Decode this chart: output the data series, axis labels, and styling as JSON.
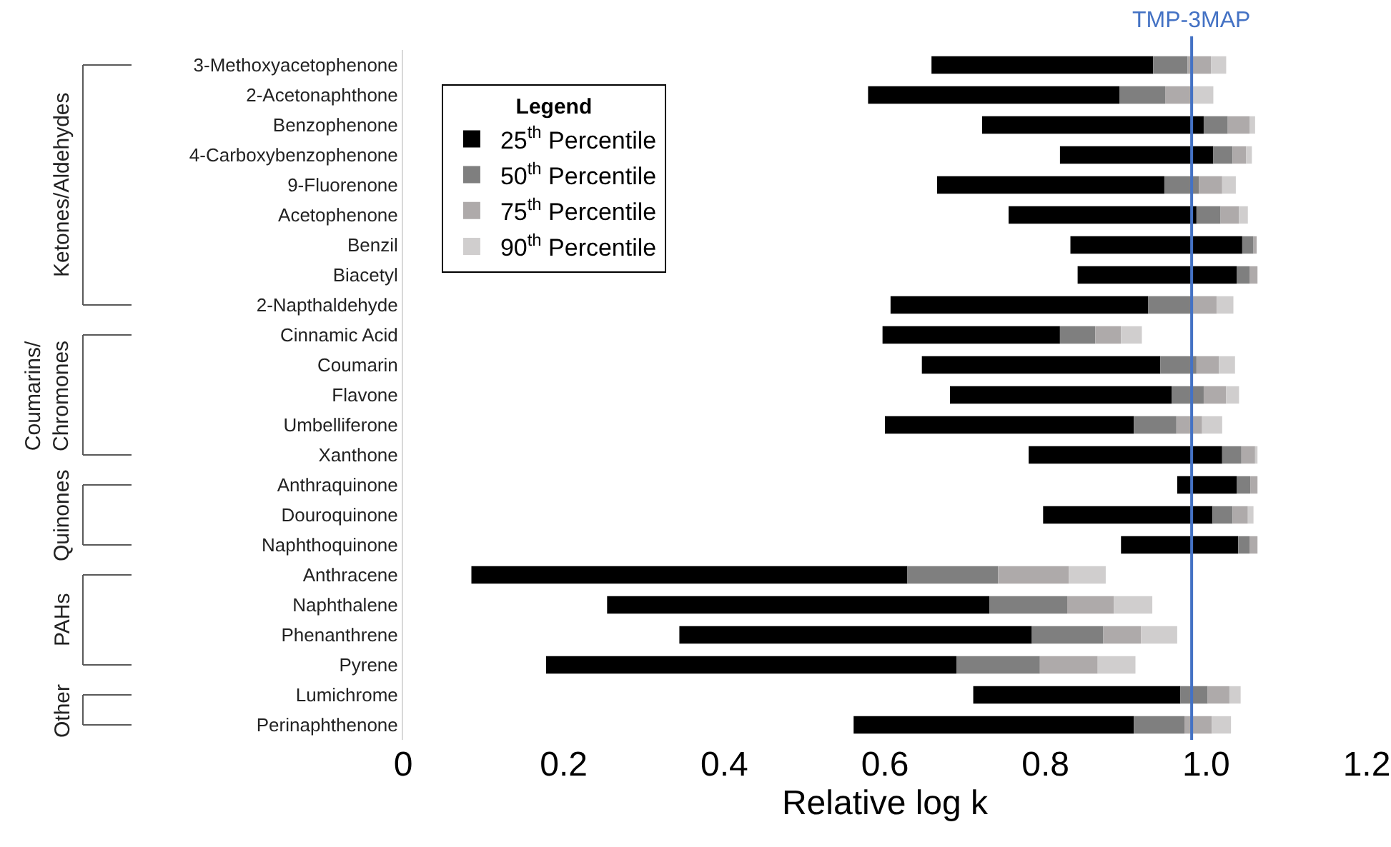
{
  "chart_data": {
    "type": "bar",
    "orientation": "horizontal",
    "xlabel": "Relative log k",
    "legend_title": "Legend",
    "legend": "top left",
    "grid": false,
    "categories": [
      "3-Methoxyacetophenone",
      "2-Acetonaphthone",
      "Benzophenone",
      "4-Carboxybenzophenone",
      "9-Fluorenone",
      "Acetophenone",
      "Benzil",
      "Biacetyl",
      "2-Napthaldehyde",
      "Cinnamic Acid",
      "Coumarin",
      "Flavone",
      "Umbelliferone",
      "Xanthone",
      "Anthraquinone",
      "Douroquinone",
      "Naphthoquinone",
      "Anthracene",
      "Naphthalene",
      "Phenanthrene",
      "Pyrene",
      "Lumichrome",
      "Perinaphthenone"
    ],
    "series": [
      {
        "name": "25$^{th}$ Percentile",
        "color": "#000000",
        "base": [
          0.658,
          0.579,
          0.721,
          0.818,
          0.665,
          0.754,
          0.831,
          0.84,
          0.607,
          0.597,
          0.646,
          0.681,
          0.6,
          0.779,
          0.964,
          0.797,
          0.894,
          0.085,
          0.254,
          0.344,
          0.178,
          0.71,
          0.561
        ],
        "values": [
          0.276,
          0.313,
          0.276,
          0.191,
          0.283,
          0.234,
          0.214,
          0.198,
          0.321,
          0.221,
          0.297,
          0.276,
          0.31,
          0.241,
          0.074,
          0.211,
          0.146,
          0.543,
          0.476,
          0.439,
          0.511,
          0.258,
          0.349
        ]
      },
      {
        "name": "50$^{th}$ Percentile",
        "color": "#7f7f7f",
        "base": [
          0.934,
          0.892,
          0.997,
          1.009,
          0.948,
          0.988,
          1.045,
          1.038,
          0.928,
          0.818,
          0.943,
          0.957,
          0.91,
          1.02,
          1.038,
          1.008,
          1.04,
          0.628,
          0.73,
          0.783,
          0.689,
          0.968,
          0.91
        ],
        "values": [
          0.043,
          0.057,
          0.03,
          0.024,
          0.043,
          0.03,
          0.014,
          0.016,
          0.054,
          0.044,
          0.045,
          0.04,
          0.053,
          0.024,
          0.017,
          0.025,
          0.014,
          0.113,
          0.097,
          0.089,
          0.104,
          0.034,
          0.063
        ]
      },
      {
        "name": "75$^{th}$ Percentile",
        "color": "#aeaaaa",
        "base": [
          0.977,
          0.949,
          1.027,
          1.033,
          0.991,
          1.018,
          1.059,
          1.054,
          0.982,
          0.862,
          0.988,
          0.997,
          0.963,
          1.044,
          1.055,
          1.033,
          1.054,
          0.741,
          0.827,
          0.872,
          0.793,
          1.002,
          0.973
        ],
        "values": [
          0.029,
          0.033,
          0.027,
          0.017,
          0.029,
          0.023,
          0.004,
          0.01,
          0.031,
          0.032,
          0.028,
          0.028,
          0.032,
          0.017,
          0.009,
          0.019,
          0.01,
          0.088,
          0.058,
          0.047,
          0.072,
          0.027,
          0.034
        ]
      },
      {
        "name": "90$^{th}$ Percentile",
        "color": "#d0cece",
        "base": [
          1.006,
          0.982,
          1.054,
          1.05,
          1.02,
          1.041,
          null,
          null,
          1.013,
          0.894,
          1.016,
          1.025,
          0.995,
          1.061,
          null,
          1.052,
          null,
          0.829,
          0.885,
          0.919,
          0.865,
          1.029,
          1.007
        ],
        "values": [
          0.019,
          0.027,
          0.007,
          0.007,
          0.017,
          0.011,
          null,
          null,
          0.021,
          0.026,
          0.02,
          0.016,
          0.025,
          0.003,
          null,
          0.007,
          null,
          0.046,
          0.048,
          0.045,
          0.047,
          0.014,
          0.024
        ]
      }
    ],
    "xlim": [
      0,
      1.2
    ],
    "xticks": [
      0,
      0.2,
      0.4,
      0.6,
      0.8,
      {
        "value": 1,
        "label": "1.0"
      },
      1.2
    ],
    "ref_lines": [
      {
        "axis": "x",
        "value": 0.982,
        "label": "TMP-3MAP",
        "color": "#4472c4"
      }
    ],
    "annotations": [
      "Ketones/Aldehydes",
      "Coumarins/\nChromones",
      "Quinones",
      "PAHs",
      "Other"
    ]
  }
}
